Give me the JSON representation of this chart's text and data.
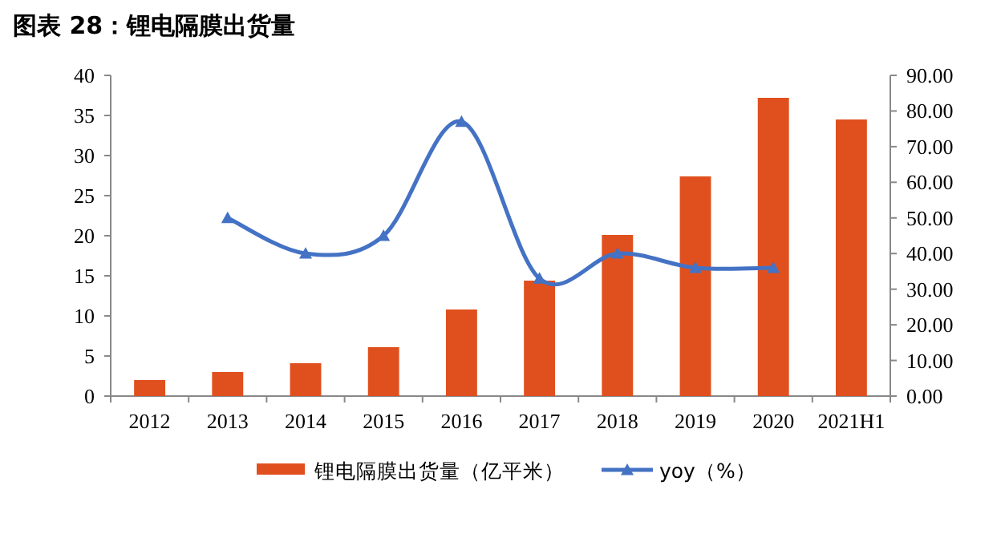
{
  "chart_data": {
    "type": "bar",
    "title": "图表 28：锂电隔膜出货量",
    "categories": [
      "2012",
      "2013",
      "2014",
      "2015",
      "2016",
      "2017",
      "2018",
      "2019",
      "2020",
      "2021H1"
    ],
    "series": [
      {
        "name": "锂电隔膜出货量（亿平米）",
        "color": "#e0501e",
        "values": [
          2.0,
          3.0,
          4.1,
          6.1,
          10.8,
          14.4,
          20.1,
          27.4,
          37.2,
          34.5
        ]
      },
      {
        "name": "yoy（%）",
        "type": "line",
        "axis": "y2",
        "color": "#4472c4",
        "values": [
          null,
          50,
          40,
          45,
          77,
          33,
          40,
          36,
          36,
          null
        ]
      }
    ],
    "ylim": [
      0,
      40
    ],
    "yticks": [
      0,
      5,
      10,
      15,
      20,
      25,
      30,
      35,
      40
    ],
    "y2lim": [
      0,
      90
    ],
    "y2ticks": [
      {
        "value": 0,
        "label": "0.00"
      },
      {
        "value": 10,
        "label": "10.00"
      },
      {
        "value": 20,
        "label": "20.00"
      },
      {
        "value": 30,
        "label": "30.00"
      },
      {
        "value": 40,
        "label": "40.00"
      },
      {
        "value": 50,
        "label": "50.00"
      },
      {
        "value": 60,
        "label": "60.00"
      },
      {
        "value": 70,
        "label": "70.00"
      },
      {
        "value": 80,
        "label": "80.00"
      },
      {
        "value": 90,
        "label": "90.00"
      }
    ],
    "marker": "triangle",
    "legend": "bottom",
    "grid": false
  }
}
